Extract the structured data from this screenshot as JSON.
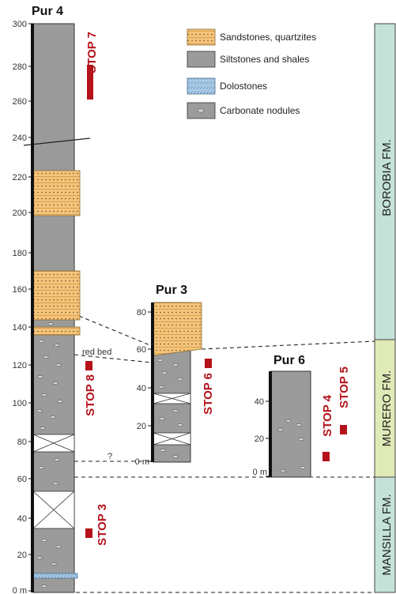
{
  "columns": {
    "pur4": {
      "title": "Pur 4",
      "ticks": [
        "300",
        "280",
        "260",
        "240",
        "220",
        "200",
        "180",
        "160",
        "140",
        "120",
        "100",
        "80",
        "60",
        "40",
        "20",
        "0 m"
      ]
    },
    "pur3": {
      "title": "Pur 3",
      "ticks": [
        "80",
        "60",
        "40",
        "20",
        "0 m"
      ]
    },
    "pur6": {
      "title": "Pur 6",
      "ticks": [
        "40",
        "20",
        "0 m"
      ]
    }
  },
  "stops": {
    "stop7": "STOP 7",
    "stop8": "STOP 8",
    "stop3": "STOP 3",
    "stop6": "STOP 6",
    "stop4": "STOP 4",
    "stop5": "STOP 5"
  },
  "annotations": {
    "red_bed": "red bed",
    "question": "?"
  },
  "legend": [
    {
      "label": "Sandstones, quartzites",
      "pattern": "sandstone"
    },
    {
      "label": "Siltstones and shales",
      "pattern": "siltstone"
    },
    {
      "label": "Dolostones",
      "pattern": "dolostone"
    },
    {
      "label": "Carbonate nodules",
      "pattern": "nodules"
    }
  ],
  "formations": [
    {
      "name": "BOROBIA FM.",
      "color": "#c4e2d8"
    },
    {
      "name": "MURERO FM.",
      "color": "#dfeab6"
    },
    {
      "name": "MANSILLA FM.",
      "color": "#c4e2d8"
    }
  ],
  "colors": {
    "sandstone": "#f5c47a",
    "siltstone": "#9b9b9b",
    "dolostone": "#a9cbe8",
    "stop_marker": "#b5121b"
  }
}
